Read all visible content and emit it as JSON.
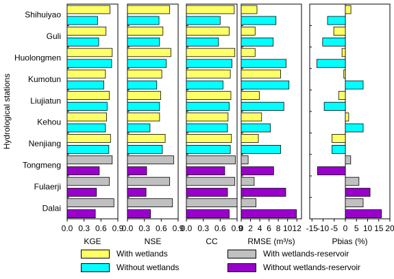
{
  "chart_data": {
    "type": "bar",
    "orientation": "horizontal",
    "ylabel": "Hydrological stations",
    "categories": [
      "Shihuiyao",
      "Guli",
      "Huolongmen",
      "Kumotun",
      "Liujiatun",
      "Kehou",
      "Nenjiang",
      "Tongmeng",
      "Fulaerji",
      "Dalai"
    ],
    "series_colors": {
      "With wetlands": "#ffff66",
      "Without wetlands": "#00ffff",
      "With wetlands-reservoir": "#c0c0c0",
      "Without wetlands-reservoir": "#9900cc"
    },
    "legend": [
      "With wetlands",
      "Without wetlands",
      "With wetlands-reservoir",
      "Without wetlands-reservoir"
    ],
    "legend_placement": "bottom",
    "panels": [
      {
        "xlabel": "KGE",
        "xlim": [
          0,
          0.9
        ],
        "ticks": [
          "0.0",
          "0.3",
          "0.6",
          "0.9"
        ],
        "tick_values": [
          0,
          0.3,
          0.6,
          0.9
        ],
        "series": [
          {
            "name": "With wetlands",
            "values": [
              0.76,
              0.69,
              0.8,
              0.68,
              0.75,
              0.7,
              0.77,
              null,
              null,
              null
            ]
          },
          {
            "name": "Without wetlands",
            "values": [
              0.54,
              0.56,
              0.79,
              0.65,
              0.71,
              0.68,
              0.74,
              null,
              null,
              null
            ]
          },
          {
            "name": "With wetlands-reservoir",
            "values": [
              null,
              null,
              null,
              null,
              null,
              null,
              null,
              0.8,
              0.75,
              0.83
            ]
          },
          {
            "name": "Without wetlands-reservoir",
            "values": [
              null,
              null,
              null,
              null,
              null,
              null,
              null,
              0.57,
              0.52,
              0.5
            ]
          }
        ]
      },
      {
        "xlabel": "NSE",
        "xlim": [
          0,
          0.9
        ],
        "ticks": [
          "0.0",
          "0.3",
          "0.6",
          "0.9"
        ],
        "tick_values": [
          0,
          0.3,
          0.6,
          0.9
        ],
        "series": [
          {
            "name": "With wetlands",
            "values": [
              0.75,
              0.63,
              0.77,
              0.61,
              0.59,
              0.57,
              0.67,
              null,
              null,
              null
            ]
          },
          {
            "name": "Without wetlands",
            "values": [
              0.56,
              0.57,
              0.69,
              0.52,
              0.57,
              0.4,
              0.62,
              null,
              null,
              null
            ]
          },
          {
            "name": "With wetlands-reservoir",
            "values": [
              null,
              null,
              null,
              null,
              null,
              null,
              null,
              0.82,
              0.75,
              0.8
            ]
          },
          {
            "name": "Without wetlands-reservoir",
            "values": [
              null,
              null,
              null,
              null,
              null,
              null,
              null,
              0.34,
              0.33,
              0.41
            ]
          }
        ]
      },
      {
        "xlabel": "CC",
        "xlim": [
          0,
          0.9
        ],
        "ticks": [
          "0.0",
          "0.3",
          "0.6",
          "0.9"
        ],
        "tick_values": [
          0,
          0.3,
          0.6,
          0.9
        ],
        "series": [
          {
            "name": "With wetlands",
            "values": [
              0.85,
              0.76,
              0.86,
              0.78,
              0.79,
              0.74,
              0.8,
              null,
              null,
              null
            ]
          },
          {
            "name": "Without wetlands",
            "values": [
              0.6,
              0.57,
              0.81,
              0.65,
              0.76,
              0.73,
              0.78,
              null,
              null,
              null
            ]
          },
          {
            "name": "With wetlands-reservoir",
            "values": [
              null,
              null,
              null,
              null,
              null,
              null,
              null,
              0.87,
              0.86,
              0.93
            ]
          },
          {
            "name": "Without wetlands-reservoir",
            "values": [
              null,
              null,
              null,
              null,
              null,
              null,
              null,
              0.68,
              0.73,
              0.76
            ]
          }
        ]
      },
      {
        "xlabel": "RMSE (m³/s)",
        "xlim": [
          0,
          13
        ],
        "ticks": [
          "0",
          "2",
          "4",
          "6",
          "8",
          "10",
          "12"
        ],
        "tick_values": [
          0,
          2,
          4,
          6,
          8,
          10,
          12
        ],
        "series": [
          {
            "name": "With wetlands",
            "values": [
              3.4,
              3.0,
              3.0,
              8.5,
              3.9,
              4.4,
              3.7,
              null,
              null,
              null
            ]
          },
          {
            "name": "Without wetlands",
            "values": [
              7.5,
              6.9,
              9.7,
              10.3,
              9.2,
              6.3,
              8.5,
              null,
              null,
              null
            ]
          },
          {
            "name": "With wetlands-reservoir",
            "values": [
              null,
              null,
              null,
              null,
              null,
              null,
              null,
              1.5,
              2.8,
              3.2
            ]
          },
          {
            "name": "Without wetlands-reservoir",
            "values": [
              null,
              null,
              null,
              null,
              null,
              null,
              null,
              7.0,
              9.6,
              11.9
            ]
          }
        ]
      },
      {
        "xlabel": "Pbias (%)",
        "xlim": [
          -16,
          20
        ],
        "ticks": [
          "-15",
          "-10",
          "-5",
          "0",
          "5",
          "10",
          "15",
          "20"
        ],
        "tick_values": [
          -15,
          -10,
          -5,
          0,
          5,
          10,
          15,
          20
        ],
        "series": [
          {
            "name": "With wetlands",
            "values": [
              2.5,
              -5.2,
              -1.5,
              -0.7,
              -3.0,
              1.5,
              -6.0,
              null,
              null,
              null
            ]
          },
          {
            "name": "Without wetlands",
            "values": [
              -8.0,
              -10.2,
              -12.8,
              8.0,
              -9.5,
              8.0,
              -6.0,
              null,
              null,
              null
            ]
          },
          {
            "name": "With wetlands-reservoir",
            "values": [
              null,
              null,
              null,
              null,
              null,
              null,
              null,
              2.4,
              6.1,
              8.0
            ]
          },
          {
            "name": "Without wetlands-reservoir",
            "values": [
              null,
              null,
              null,
              null,
              null,
              null,
              null,
              -12.5,
              11.1,
              16.2
            ]
          }
        ]
      }
    ]
  }
}
